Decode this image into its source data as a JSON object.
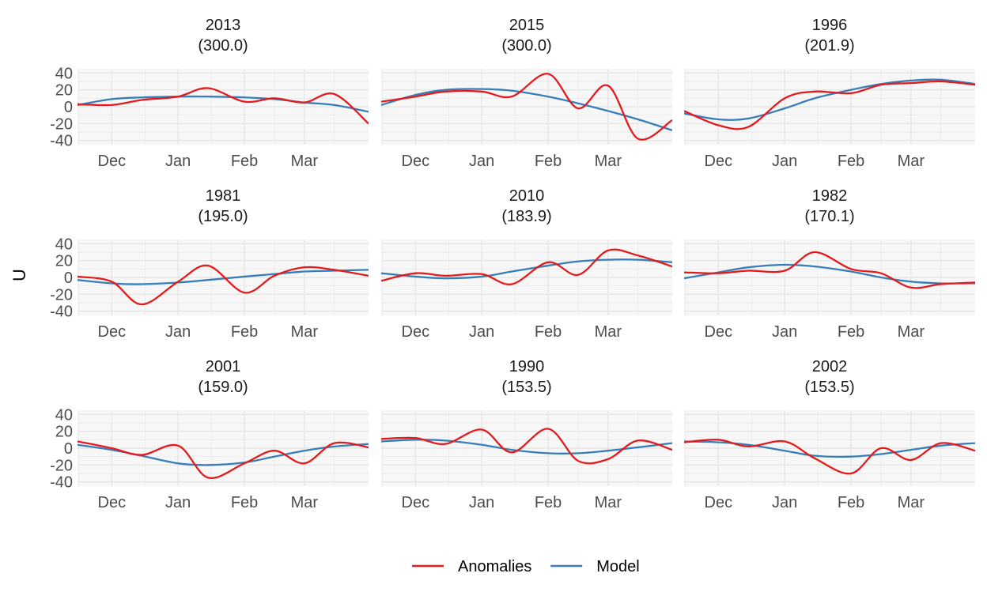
{
  "chart_data": {
    "type": "line",
    "layout": "facet-grid-3x3",
    "ylabel": "U",
    "xlabel": "",
    "ylim": [
      -45,
      45
    ],
    "yticks": [
      -40,
      -20,
      0,
      20,
      40
    ],
    "x_domain": [
      "Nov 15",
      "Mar 31"
    ],
    "xticks": [
      {
        "label": "Dec",
        "date": "Dec 1"
      },
      {
        "label": "Jan",
        "date": "Jan 1"
      },
      {
        "label": "Feb",
        "date": "Feb 1"
      },
      {
        "label": "Mar",
        "date": "Mar 1"
      }
    ],
    "grid": true,
    "legend": {
      "position": "bottom",
      "entries": [
        {
          "name": "Anomalies",
          "color": "#e41a1c"
        },
        {
          "name": "Model",
          "color": "#377eb8"
        }
      ]
    },
    "x_dates": [
      "Nov 15",
      "Dec 1",
      "Dec 15",
      "Jan 1",
      "Jan 15",
      "Feb 1",
      "Feb 15",
      "Mar 1",
      "Mar 15",
      "Mar 31"
    ],
    "panels": [
      {
        "title": "2013",
        "subtitle": "(300.0)",
        "series": [
          {
            "name": "Anomalies",
            "values": [
              3,
              2,
              8,
              12,
              22,
              6,
              10,
              5,
              15,
              -20
            ]
          },
          {
            "name": "Model",
            "values": [
              2,
              9,
              11,
              12,
              12,
              11,
              9,
              5,
              2,
              -6
            ]
          }
        ]
      },
      {
        "title": "2015",
        "subtitle": "(300.0)",
        "series": [
          {
            "name": "Anomalies",
            "values": [
              6,
              12,
              18,
              18,
              12,
              39,
              -2,
              25,
              -38,
              -16
            ]
          },
          {
            "name": "Model",
            "values": [
              2,
              14,
              20,
              21,
              19,
              12,
              4,
              -5,
              -15,
              -28
            ]
          }
        ]
      },
      {
        "title": "1996",
        "subtitle": "(201.9)",
        "series": [
          {
            "name": "Anomalies",
            "values": [
              -5,
              -22,
              -24,
              10,
              18,
              16,
              26,
              28,
              30,
              26
            ]
          },
          {
            "name": "Model",
            "values": [
              -8,
              -15,
              -14,
              -2,
              10,
              20,
              27,
              31,
              32,
              27
            ]
          }
        ]
      },
      {
        "title": "1981",
        "subtitle": "(195.0)",
        "series": [
          {
            "name": "Anomalies",
            "values": [
              1,
              -5,
              -32,
              -5,
              14,
              -18,
              2,
              12,
              9,
              2
            ]
          },
          {
            "name": "Model",
            "values": [
              -3,
              -7,
              -8,
              -6,
              -3,
              1,
              4,
              7,
              8,
              9
            ]
          }
        ]
      },
      {
        "title": "2010",
        "subtitle": "(183.9)",
        "series": [
          {
            "name": "Anomalies",
            "values": [
              -4,
              5,
              2,
              4,
              -8,
              18,
              3,
              32,
              26,
              13
            ]
          },
          {
            "name": "Model",
            "values": [
              5,
              1,
              -1,
              1,
              7,
              14,
              19,
              21,
              21,
              18
            ]
          }
        ]
      },
      {
        "title": "1982",
        "subtitle": "(170.1)",
        "series": [
          {
            "name": "Anomalies",
            "values": [
              6,
              5,
              8,
              8,
              30,
              10,
              5,
              -12,
              -8,
              -6
            ]
          },
          {
            "name": "Model",
            "values": [
              -1,
              6,
              12,
              15,
              13,
              7,
              0,
              -5,
              -7,
              -7
            ]
          }
        ]
      },
      {
        "title": "2001",
        "subtitle": "(159.0)",
        "series": [
          {
            "name": "Anomalies",
            "values": [
              8,
              0,
              -8,
              3,
              -35,
              -18,
              -3,
              -18,
              6,
              1
            ]
          },
          {
            "name": "Model",
            "values": [
              4,
              -2,
              -9,
              -18,
              -20,
              -17,
              -10,
              -3,
              2,
              5
            ]
          }
        ]
      },
      {
        "title": "1990",
        "subtitle": "(153.5)",
        "series": [
          {
            "name": "Anomalies",
            "values": [
              11,
              12,
              5,
              22,
              -5,
              23,
              -15,
              -13,
              9,
              -2
            ]
          },
          {
            "name": "Model",
            "values": [
              8,
              10,
              9,
              4,
              -2,
              -6,
              -6,
              -3,
              1,
              6
            ]
          }
        ]
      },
      {
        "title": "2002",
        "subtitle": "(153.5)",
        "series": [
          {
            "name": "Anomalies",
            "values": [
              7,
              10,
              2,
              8,
              -12,
              -30,
              0,
              -14,
              6,
              -3
            ]
          },
          {
            "name": "Model",
            "values": [
              8,
              7,
              4,
              -3,
              -9,
              -10,
              -7,
              -2,
              3,
              6
            ]
          }
        ]
      }
    ]
  }
}
